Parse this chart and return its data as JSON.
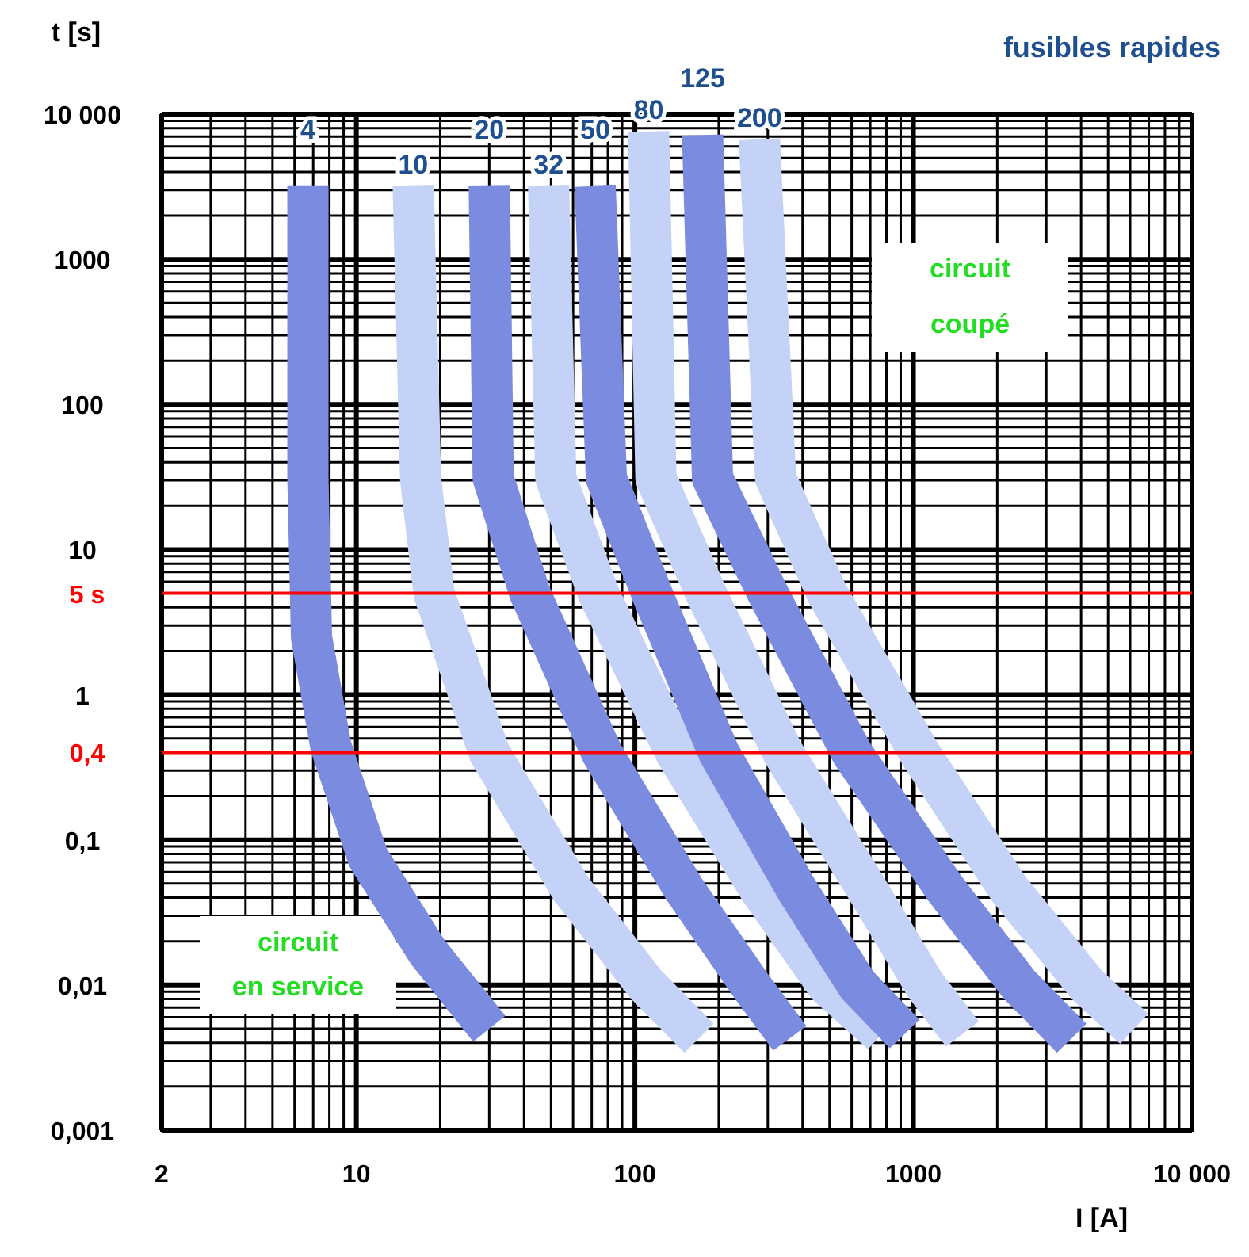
{
  "chart_data": {
    "type": "line",
    "title": "fusibles rapides",
    "xlabel": "I [A]",
    "ylabel": "t [s]",
    "log": "xy",
    "grid": true,
    "xlim": [
      2,
      10000
    ],
    "ylim": [
      0.001,
      10000
    ],
    "xticks": [
      2,
      10,
      100,
      1000,
      {
        "value": 10000,
        "label": "10 000"
      }
    ],
    "yticks": [
      {
        "value": 0.001,
        "label": "0,001"
      },
      {
        "value": 0.01,
        "label": "0,01"
      },
      {
        "value": 0.1,
        "label": "0,1"
      },
      1,
      10,
      100,
      1000,
      {
        "value": 10000,
        "label": "10 000"
      }
    ],
    "series": [
      {
        "name": "4",
        "color": "#7b8be0",
        "x": [
          6.7,
          6.7,
          6.9,
          8.1,
          11,
          18,
          30
        ],
        "values": [
          3200,
          31,
          2.5,
          0.44,
          0.076,
          0.017,
          0.005
        ]
      },
      {
        "name": "10",
        "color": "#c3d2f6",
        "x": [
          16,
          17,
          19,
          30,
          59,
          110,
          170
        ],
        "values": [
          3200,
          31,
          5,
          0.4,
          0.046,
          0.01,
          0.0043
        ]
      },
      {
        "name": "20",
        "color": "#7b8be0",
        "x": [
          30,
          31,
          42,
          76,
          150,
          260,
          360
        ],
        "values": [
          3200,
          31,
          5,
          0.4,
          0.046,
          0.01,
          0.0043
        ]
      },
      {
        "name": "32",
        "color": "#c3d2f6",
        "x": [
          49,
          52,
          74,
          140,
          280,
          490,
          770
        ],
        "values": [
          3200,
          31,
          5,
          0.4,
          0.046,
          0.01,
          0.0046
        ]
      },
      {
        "name": "50",
        "color": "#7b8be0",
        "x": [
          72,
          79,
          115,
          200,
          380,
          630,
          930
        ],
        "values": [
          3200,
          31,
          5,
          0.4,
          0.046,
          0.01,
          0.0046
        ]
      },
      {
        "name": "80",
        "color": "#c3d2f6",
        "x": [
          112,
          119,
          180,
          340,
          680,
          1100,
          1500
        ],
        "values": [
          7600,
          31,
          5,
          0.4,
          0.046,
          0.01,
          0.0046
        ]
      },
      {
        "name": "125",
        "color": "#7b8be0",
        "x": [
          175,
          190,
          300,
          600,
          1300,
          2400,
          3700
        ],
        "values": [
          7200,
          31,
          5,
          0.4,
          0.046,
          0.01,
          0.0043
        ]
      },
      {
        "name": "200",
        "color": "#c3d2f6",
        "x": [
          280,
          320,
          490,
          1050,
          2200,
          4200,
          6200
        ],
        "values": [
          6700,
          31,
          5,
          0.4,
          0.046,
          0.01,
          0.005
        ]
      }
    ],
    "ref_lines": [
      {
        "axis": "y",
        "value": 5,
        "label": "5 s",
        "color": "#ff0000"
      },
      {
        "axis": "y",
        "value": 0.4,
        "label": "0,4",
        "color": "#ff0000"
      }
    ],
    "annotations": [
      "circuit coupé",
      "circuit en service"
    ]
  }
}
